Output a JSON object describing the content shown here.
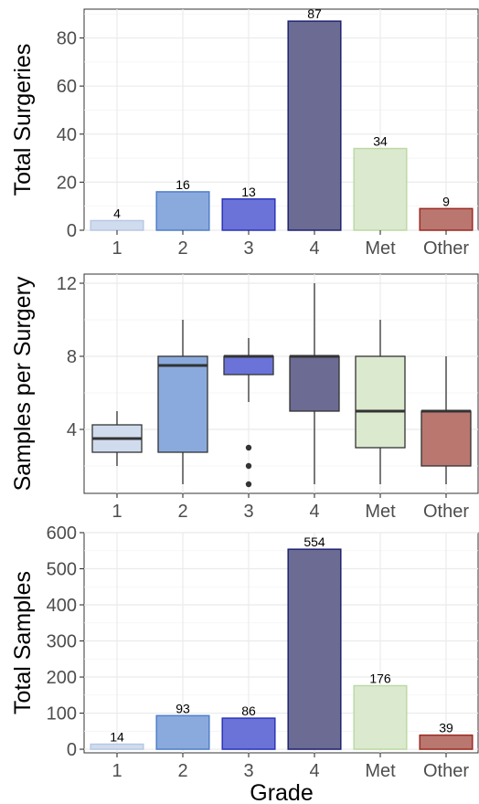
{
  "chart_data": [
    {
      "type": "bar",
      "categories": [
        "1",
        "2",
        "3",
        "4",
        "Met",
        "Other"
      ],
      "values": [
        4,
        16,
        13,
        87,
        34,
        9
      ],
      "data_labels": [
        "4",
        "16",
        "13",
        "87",
        "34",
        "9"
      ],
      "ylabel": "Total Surgeries",
      "xlabel": "",
      "ylim": [
        0,
        92
      ],
      "yticks": [
        0,
        20,
        40,
        60,
        80
      ],
      "ytick_labels": [
        "0",
        "20",
        "40",
        "60",
        "80"
      ],
      "grid": true
    },
    {
      "type": "box",
      "categories": [
        "1",
        "2",
        "3",
        "4",
        "Met",
        "Other"
      ],
      "boxes": [
        {
          "q1": 2.75,
          "median": 3.5,
          "q3": 4.25,
          "whisker_low": 2,
          "whisker_high": 5,
          "outliers": []
        },
        {
          "q1": 2.75,
          "median": 7.5,
          "q3": 8,
          "whisker_low": 1,
          "whisker_high": 10,
          "outliers": []
        },
        {
          "q1": 7,
          "median": 8,
          "q3": 8,
          "whisker_low": 5.5,
          "whisker_high": 9,
          "outliers": [
            3,
            2,
            1
          ]
        },
        {
          "q1": 5,
          "median": 8,
          "q3": 8,
          "whisker_low": 1,
          "whisker_high": 12,
          "outliers": []
        },
        {
          "q1": 3,
          "median": 5,
          "q3": 8,
          "whisker_low": 1,
          "whisker_high": 10,
          "outliers": []
        },
        {
          "q1": 2,
          "median": 5,
          "q3": 5,
          "whisker_low": 1,
          "whisker_high": 8,
          "outliers": []
        }
      ],
      "ylabel": "Samples per Surgery",
      "xlabel": "",
      "ylim": [
        0.5,
        12.5
      ],
      "yticks": [
        4,
        8,
        12
      ],
      "ytick_labels": [
        "4",
        "8",
        "12"
      ],
      "grid": true
    },
    {
      "type": "bar",
      "categories": [
        "1",
        "2",
        "3",
        "4",
        "Met",
        "Other"
      ],
      "values": [
        14,
        93,
        86,
        554,
        176,
        39
      ],
      "data_labels": [
        "14",
        "93",
        "86",
        "554",
        "176",
        "39"
      ],
      "ylabel": "Total Samples",
      "xlabel": "Grade",
      "ylim": [
        -10,
        600
      ],
      "yticks": [
        0,
        100,
        200,
        300,
        400,
        500,
        600
      ],
      "ytick_labels": [
        "0",
        "100",
        "200",
        "300",
        "400",
        "500",
        "600"
      ],
      "grid": true
    }
  ],
  "colors": {
    "fills": [
      "#d0dcee",
      "#8aaadd",
      "#6b73d9",
      "#6b6b93",
      "#dbe9cf",
      "#b9776f"
    ],
    "strokes": [
      "#b6c8e6",
      "#4f7fc9",
      "#2a34b8",
      "#1f2370",
      "#bcd9a4",
      "#9c2b22"
    ],
    "grid": "#ebebeb",
    "axis_text": "#4d4d4d"
  }
}
